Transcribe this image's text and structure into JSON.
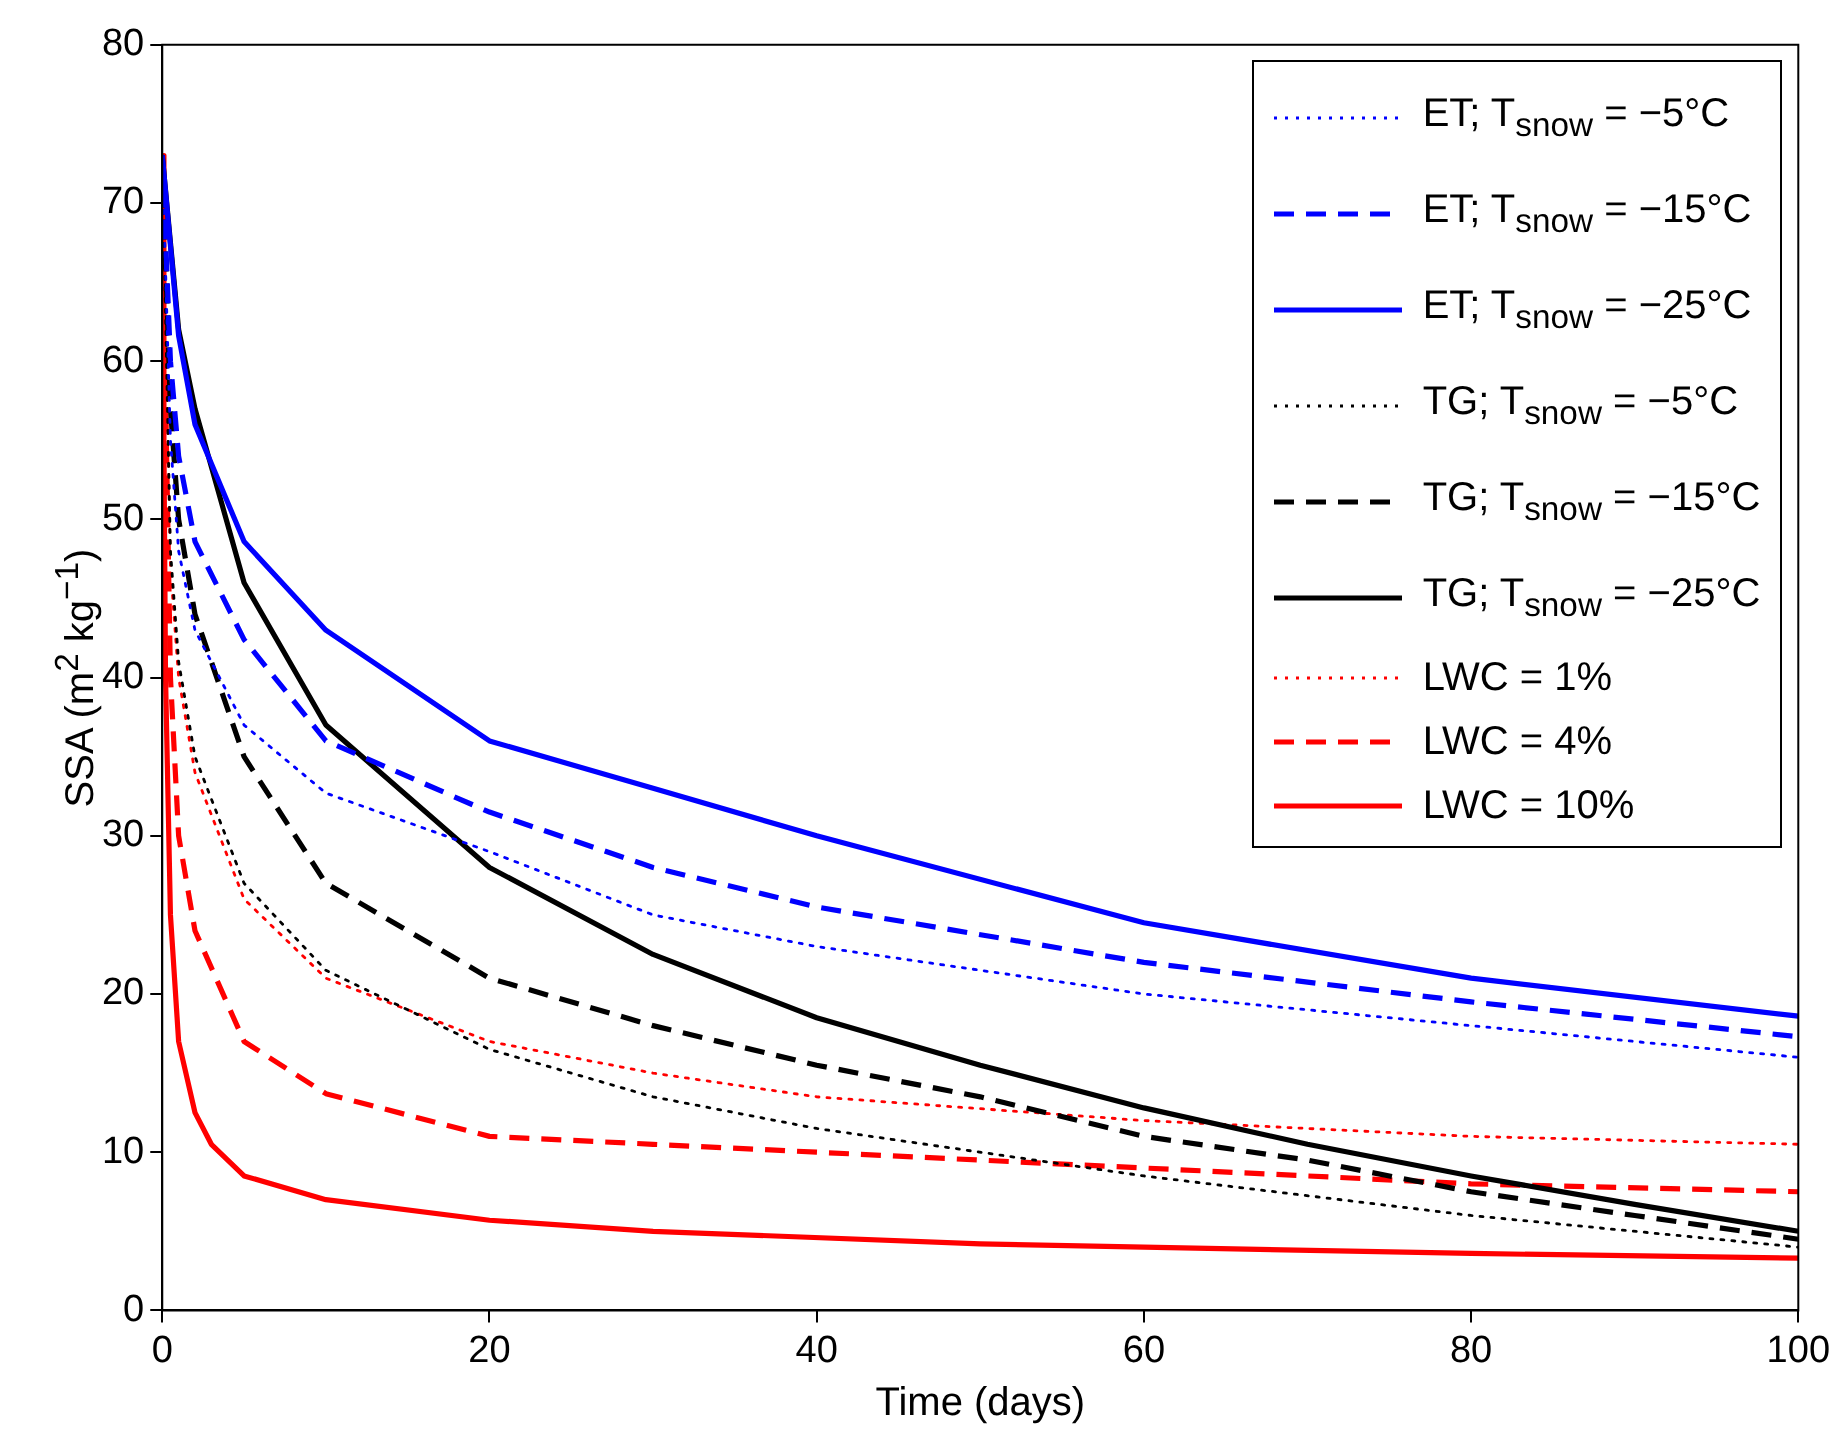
{
  "chart_data": {
    "type": "line",
    "xlabel": "Time (days)",
    "ylabel": "SSA (m$^{2}$ kg$^{−1}$)",
    "xlim": [
      0,
      100
    ],
    "ylim": [
      0,
      80
    ],
    "xticks": [
      0,
      20,
      40,
      60,
      80,
      100
    ],
    "yticks": [
      0,
      10,
      20,
      30,
      40,
      50,
      60,
      70,
      80
    ],
    "grid": false,
    "legend": "top right",
    "marker": "none",
    "series": [
      {
        "name": "ET; T$_{snow}$ = −5°C",
        "color": "#0000ff",
        "line_style": "dotted",
        "x": [
          0,
          0.5,
          1,
          2,
          5,
          10,
          20,
          30,
          40,
          60,
          80,
          100
        ],
        "values": [
          73,
          55,
          48,
          43,
          37,
          32.7,
          29,
          25,
          23,
          20,
          18,
          16
        ]
      },
      {
        "name": "ET; T$_{snow}$ = −15°C",
        "color": "#0000ff",
        "line_style": "dashed",
        "x": [
          0,
          0.5,
          1,
          2,
          5,
          10,
          20,
          30,
          40,
          60,
          80,
          100
        ],
        "values": [
          73,
          60,
          54,
          48.6,
          42.4,
          36,
          31.5,
          28,
          25.5,
          22,
          19.5,
          17.3
        ]
      },
      {
        "name": "ET; T$_{snow}$ = −25°C",
        "color": "#0000ff",
        "line_style": "solid",
        "x": [
          0,
          1,
          2,
          5,
          10,
          20,
          30,
          40,
          60,
          80,
          100
        ],
        "values": [
          73,
          61.6,
          56,
          48.6,
          43,
          36,
          33,
          30,
          24.5,
          21,
          18.6
        ]
      },
      {
        "name": "TG; T$_{snow}$ = −5°C",
        "color": "#000000",
        "line_style": "dotted",
        "x": [
          0,
          0.5,
          1,
          2,
          5,
          10,
          20,
          30,
          40,
          60,
          80,
          100
        ],
        "values": [
          73,
          48,
          41,
          35,
          27,
          21.5,
          16.5,
          13.5,
          11.5,
          8.5,
          6,
          4
        ]
      },
      {
        "name": "TG; T$_{snow}$ = −15°C",
        "color": "#000000",
        "line_style": "dashed",
        "x": [
          0,
          0.5,
          1,
          2,
          5,
          10,
          20,
          30,
          40,
          50,
          60,
          70,
          80,
          90,
          100
        ],
        "values": [
          73,
          57,
          50,
          44,
          35,
          27,
          21,
          18,
          15.5,
          13.5,
          11,
          9.5,
          7.5,
          6,
          4.5
        ]
      },
      {
        "name": "TG; T$_{snow}$ = −25°C",
        "color": "#000000",
        "line_style": "solid",
        "x": [
          0,
          1,
          2,
          5,
          10,
          20,
          30,
          40,
          50,
          60,
          70,
          80,
          90,
          100
        ],
        "values": [
          73,
          62,
          57,
          46,
          37,
          28,
          22.5,
          18.5,
          15.5,
          12.8,
          10.5,
          8.5,
          6.7,
          5
        ]
      },
      {
        "name": "LWC = 1%",
        "color": "#ff0000",
        "line_style": "dotted",
        "x": [
          0,
          0.5,
          1,
          2,
          5,
          10,
          20,
          30,
          40,
          60,
          80,
          100
        ],
        "values": [
          73,
          47,
          40,
          34,
          26,
          21,
          17,
          15,
          13.5,
          12,
          11,
          10.5
        ]
      },
      {
        "name": "LWC = 4%",
        "color": "#ff0000",
        "line_style": "dashed",
        "x": [
          0,
          0.25,
          0.5,
          1,
          2,
          5,
          10,
          20,
          30,
          40,
          60,
          80,
          100
        ],
        "values": [
          73,
          55,
          40,
          30,
          24,
          17,
          13.7,
          11,
          10.5,
          10,
          9,
          8,
          7.5
        ]
      },
      {
        "name": "LWC = 10%",
        "color": "#ff0000",
        "line_style": "solid",
        "x": [
          0,
          0.1,
          0.2,
          0.5,
          1,
          2,
          3,
          5,
          10,
          20,
          30,
          50,
          80,
          100
        ],
        "values": [
          73,
          55,
          40,
          25,
          17,
          12.5,
          10.5,
          8.5,
          7,
          5.7,
          5,
          4.2,
          3.6,
          3.3
        ]
      }
    ]
  }
}
